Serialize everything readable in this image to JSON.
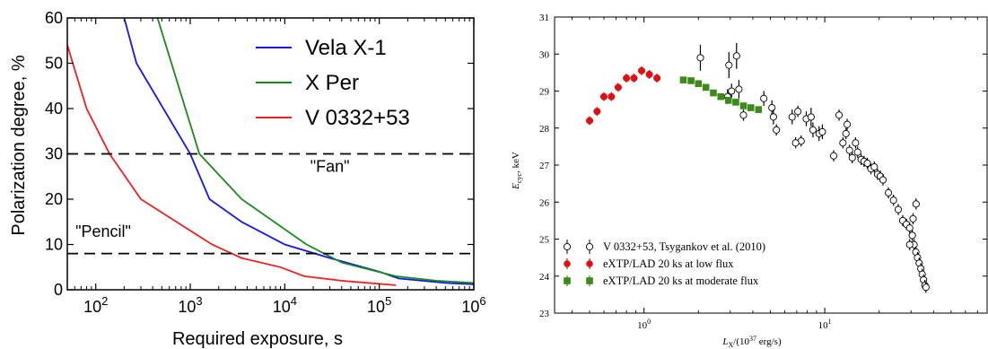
{
  "chart_data": [
    {
      "type": "line",
      "xlabel": "Required exposure, s",
      "ylabel": "Polarization degree, %",
      "xscale": "log",
      "xlim": [
        50,
        1000000
      ],
      "ylim": [
        0,
        60
      ],
      "xticks": [
        {
          "v": 100,
          "base": "10",
          "exp": "2"
        },
        {
          "v": 1000,
          "base": "10",
          "exp": "3"
        },
        {
          "v": 10000,
          "base": "10",
          "exp": "4"
        },
        {
          "v": 100000,
          "base": "10",
          "exp": "5"
        },
        {
          "v": 1000000,
          "base": "10",
          "exp": "6"
        }
      ],
      "yticks": [
        "0",
        "10",
        "20",
        "30",
        "40",
        "50",
        "60"
      ],
      "legend_position": "top-right",
      "series": [
        {
          "name": "Vela X-1",
          "color": "#1515ee",
          "x": [
            200,
            270,
            1000,
            1600,
            3500,
            10000,
            30000,
            100000,
            160000,
            500000,
            1000000
          ],
          "y": [
            60,
            50,
            30,
            20,
            15,
            10,
            7,
            4,
            2.5,
            1.5,
            1.2
          ]
        },
        {
          "name": "X Per",
          "color": "#188a18",
          "x": [
            450,
            1250,
            3500,
            17000,
            40000,
            150000,
            400000,
            1000000
          ],
          "y": [
            60,
            30,
            20,
            10,
            6,
            3,
            2,
            1.5
          ]
        },
        {
          "name": "V 0332+53",
          "color": "#ee1f1f",
          "x": [
            50,
            80,
            140,
            300,
            1700,
            3500,
            9000,
            12000,
            16000,
            40000,
            150000
          ],
          "y": [
            54,
            40,
            30,
            20,
            10,
            7,
            5,
            4,
            3,
            2,
            1
          ]
        }
      ],
      "hlines": [
        {
          "y": 30,
          "label": "\"Fan\"",
          "label_x": 30000,
          "label_y": 26
        },
        {
          "y": 8,
          "label": "\"Pencil\"",
          "label_x": 120,
          "label_y": 11.7
        }
      ]
    },
    {
      "type": "scatter",
      "xlabel": "L",
      "xlabel_sub": "X",
      "xlabel_rest": "/(10",
      "xlabel_sup": "37",
      "xlabel_end": " erg/s)",
      "ylabel": "E",
      "ylabel_sub": "cyc",
      "ylabel_rest": ", keV",
      "xscale": "log",
      "xlim": [
        0.32,
        80
      ],
      "ylim": [
        23,
        31
      ],
      "xticks": [
        {
          "v": 1,
          "base": "10",
          "exp": "0"
        },
        {
          "v": 10,
          "base": "10",
          "exp": "1"
        }
      ],
      "yticks": [
        "23",
        "24",
        "25",
        "26",
        "27",
        "28",
        "29",
        "30",
        "31"
      ],
      "legend_position": "bottom-left",
      "series": [
        {
          "name": "V 0332+53, Tsygankov et al. (2010)",
          "marker": "open-circle",
          "color": "#000000",
          "points": [
            [
              2.05,
              29.9,
              0.35
            ],
            [
              2.95,
              29.7,
              0.35
            ],
            [
              3.25,
              29.95,
              0.35
            ],
            [
              3.05,
              29.0,
              0.2
            ],
            [
              3.35,
              29.05,
              0.25
            ],
            [
              3.55,
              28.35,
              0.15
            ],
            [
              2.9,
              28.85,
              0.2
            ],
            [
              4.6,
              28.8,
              0.2
            ],
            [
              5.1,
              28.55,
              0.2
            ],
            [
              5.2,
              28.3,
              0.2
            ],
            [
              5.4,
              27.95,
              0.15
            ],
            [
              6.6,
              28.3,
              0.2
            ],
            [
              7.1,
              28.45,
              0.15
            ],
            [
              7.4,
              27.65,
              0.15
            ],
            [
              7.9,
              28.25,
              0.2
            ],
            [
              8.4,
              28.3,
              0.25
            ],
            [
              8.6,
              27.95,
              0.2
            ],
            [
              9.3,
              27.85,
              0.2
            ],
            [
              9.7,
              27.9,
              0.2
            ],
            [
              12.0,
              28.35,
              0.15
            ],
            [
              12.6,
              27.6,
              0.15
            ],
            [
              13.1,
              27.85,
              0.15
            ],
            [
              13.7,
              27.4,
              0.15
            ],
            [
              14.2,
              27.2,
              0.15
            ],
            [
              14.8,
              27.6,
              0.15
            ],
            [
              15.2,
              27.35,
              0.15
            ],
            [
              15.9,
              27.15,
              0.15
            ],
            [
              16.5,
              27.1,
              0.15
            ],
            [
              17.2,
              27.05,
              0.15
            ],
            [
              18.0,
              26.9,
              0.15
            ],
            [
              18.8,
              26.95,
              0.15
            ],
            [
              19.6,
              26.75,
              0.15
            ],
            [
              20.3,
              26.7,
              0.15
            ],
            [
              21.0,
              26.6,
              0.15
            ],
            [
              22.5,
              26.25,
              0.15
            ],
            [
              24.0,
              26.05,
              0.15
            ],
            [
              25.5,
              25.8,
              0.15
            ],
            [
              27.0,
              25.5,
              0.15
            ],
            [
              28.3,
              25.4,
              0.15
            ],
            [
              29.5,
              25.3,
              0.15
            ],
            [
              30.5,
              25.1,
              0.15
            ],
            [
              31.2,
              24.85,
              0.15
            ],
            [
              31.9,
              24.65,
              0.15
            ],
            [
              32.6,
              24.5,
              0.15
            ],
            [
              33.3,
              24.35,
              0.15
            ],
            [
              34.0,
              24.2,
              0.15
            ],
            [
              34.6,
              24.05,
              0.15
            ],
            [
              35.2,
              23.9,
              0.15
            ],
            [
              35.8,
              23.75,
              0.15
            ],
            [
              36.3,
              23.7,
              0.15
            ],
            [
              29.5,
              24.85,
              0.15
            ],
            [
              32.0,
              25.95,
              0.15
            ],
            [
              30.8,
              25.55,
              0.15
            ],
            [
              11.2,
              27.25,
              0.15
            ],
            [
              13.3,
              28.1,
              0.15
            ],
            [
              6.9,
              27.6,
              0.15
            ]
          ]
        },
        {
          "name": "eXTP/LAD 20 ks at low flux",
          "marker": "filled-circle",
          "color": "#dd1111",
          "points": [
            [
              0.5,
              28.2,
              0.12
            ],
            [
              0.55,
              28.45,
              0.12
            ],
            [
              0.6,
              28.85,
              0.12
            ],
            [
              0.66,
              28.85,
              0.12
            ],
            [
              0.72,
              29.1,
              0.12
            ],
            [
              0.8,
              29.35,
              0.12
            ],
            [
              0.88,
              29.35,
              0.12
            ],
            [
              0.97,
              29.55,
              0.12
            ],
            [
              1.07,
              29.45,
              0.12
            ],
            [
              1.18,
              29.35,
              0.12
            ]
          ]
        },
        {
          "name": "eXTP/LAD 20 ks at moderate flux",
          "marker": "filled-square",
          "color": "#3c8a1a",
          "points": [
            [
              1.65,
              29.3,
              0.05
            ],
            [
              1.82,
              29.28,
              0.05
            ],
            [
              2.0,
              29.2,
              0.05
            ],
            [
              2.2,
              29.1,
              0.05
            ],
            [
              2.42,
              28.95,
              0.05
            ],
            [
              2.66,
              28.85,
              0.05
            ],
            [
              2.93,
              28.75,
              0.05
            ],
            [
              3.22,
              28.7,
              0.05
            ],
            [
              3.55,
              28.6,
              0.05
            ],
            [
              3.9,
              28.55,
              0.05
            ],
            [
              4.3,
              28.5,
              0.05
            ]
          ]
        }
      ]
    }
  ]
}
